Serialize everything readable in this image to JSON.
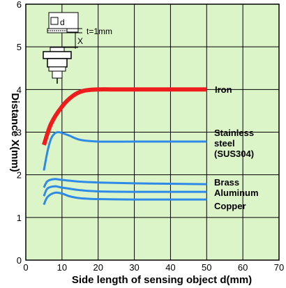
{
  "chart_data": {
    "type": "line",
    "xlabel": "Side length of sensing object d(mm)",
    "ylabel": "Distance X(mm)",
    "xlim": [
      0,
      70
    ],
    "ylim": [
      0,
      6
    ],
    "x_ticks": [
      "0",
      "10",
      "20",
      "30",
      "40",
      "50",
      "60",
      "70"
    ],
    "y_ticks": [
      "0",
      "1",
      "2",
      "3",
      "4",
      "5",
      "6"
    ],
    "grid": true,
    "background_color": "#dcf5c8",
    "series": [
      {
        "name": "Iron",
        "label_lines": [
          "Iron"
        ],
        "color": "#ee1c1c",
        "width": 6,
        "x": [
          5,
          7,
          10,
          13,
          16,
          20,
          25,
          30,
          40,
          50
        ],
        "y": [
          2.7,
          3.2,
          3.6,
          3.85,
          3.97,
          4.0,
          4.0,
          4.0,
          4.0,
          4.0
        ]
      },
      {
        "name": "Stainless steel (SUS304)",
        "label_lines": [
          "Stainless",
          "steel",
          "(SUS304)"
        ],
        "color": "#2e8ae6",
        "width": 3,
        "x": [
          5,
          6,
          7,
          8,
          9,
          10,
          12,
          15,
          20,
          30,
          40,
          50
        ],
        "y": [
          2.1,
          2.55,
          2.85,
          2.97,
          3.0,
          2.98,
          2.92,
          2.82,
          2.78,
          2.78,
          2.78,
          2.78
        ]
      },
      {
        "name": "Brass",
        "label_lines": [
          "Brass"
        ],
        "color": "#2e8ae6",
        "width": 3,
        "x": [
          5,
          6,
          8,
          10,
          15,
          20,
          30,
          40,
          50
        ],
        "y": [
          1.7,
          1.85,
          1.9,
          1.88,
          1.84,
          1.82,
          1.8,
          1.79,
          1.78
        ]
      },
      {
        "name": "Aluminum",
        "label_lines": [
          "Aluminum"
        ],
        "color": "#2e8ae6",
        "width": 3,
        "x": [
          5,
          6,
          8,
          10,
          15,
          20,
          30,
          40,
          50
        ],
        "y": [
          1.5,
          1.68,
          1.73,
          1.7,
          1.64,
          1.61,
          1.6,
          1.6,
          1.6
        ]
      },
      {
        "name": "Copper",
        "label_lines": [
          "Copper"
        ],
        "color": "#2e8ae6",
        "width": 3,
        "x": [
          5,
          6,
          8,
          10,
          12,
          15,
          20,
          30,
          40,
          50
        ],
        "y": [
          1.3,
          1.48,
          1.58,
          1.56,
          1.5,
          1.45,
          1.43,
          1.42,
          1.42,
          1.42
        ]
      }
    ],
    "inset": {
      "d_label": "d",
      "x_label": "X",
      "t_label": "t=1mm"
    }
  }
}
